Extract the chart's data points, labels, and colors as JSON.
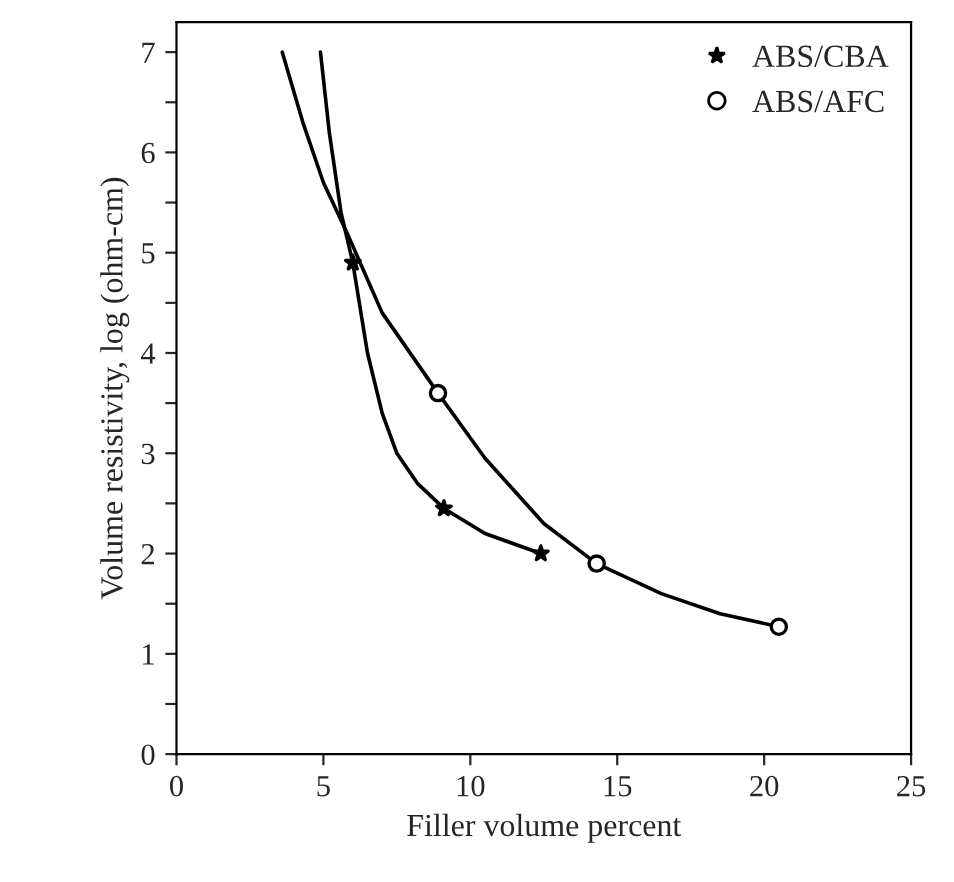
{
  "chart_data": {
    "type": "line",
    "xlabel": "Filler volume percent",
    "ylabel": "Volume resistivity, log (ohm-cm)",
    "xlim": [
      0,
      25
    ],
    "xticks": [
      0,
      5,
      10,
      15,
      20,
      25
    ],
    "ylim": [
      0,
      7.3
    ],
    "yticks": [
      0,
      {
        "value": 0.5,
        "label": null
      },
      1,
      {
        "value": 1.5,
        "label": null
      },
      2,
      {
        "value": 2.5,
        "label": null
      },
      3,
      {
        "value": 3.5,
        "label": null
      },
      4,
      {
        "value": 4.5,
        "label": null
      },
      5,
      {
        "value": 5.5,
        "label": null
      },
      6,
      {
        "value": 6.5,
        "label": null
      },
      7
    ],
    "grid": false,
    "legend": "top right",
    "series": [
      {
        "color": "#000000",
        "marker": "none",
        "line_style": "solid",
        "x": [
          4.9,
          5.2,
          5.6,
          6.0,
          6.5,
          7.0,
          7.5,
          8.2,
          9.1,
          10.5,
          12.4
        ],
        "values": [
          7.0,
          6.2,
          5.4,
          4.9,
          4.0,
          3.4,
          3.0,
          2.7,
          2.45,
          2.2,
          2.0
        ]
      },
      {
        "color": "#000000",
        "marker": "none",
        "line_style": "solid",
        "x": [
          3.6,
          4.3,
          5.0,
          5.8,
          7.0,
          8.9,
          10.5,
          12.5,
          14.3,
          16.5,
          18.5,
          20.5
        ],
        "values": [
          7.0,
          6.3,
          5.7,
          5.2,
          4.4,
          3.6,
          2.95,
          2.3,
          1.9,
          1.6,
          1.4,
          1.27
        ]
      },
      {
        "type": "scatter",
        "name": "ABS/CBA",
        "color": "#000000",
        "marker": "star",
        "x": [
          6.0,
          9.1,
          12.4
        ],
        "values": [
          4.9,
          2.45,
          2.0
        ]
      },
      {
        "type": "scatter",
        "name": "ABS/AFC",
        "color": "#000000",
        "marker": "circle",
        "x": [
          8.9,
          14.3,
          20.5
        ],
        "values": [
          3.6,
          1.9,
          1.27
        ]
      }
    ]
  }
}
